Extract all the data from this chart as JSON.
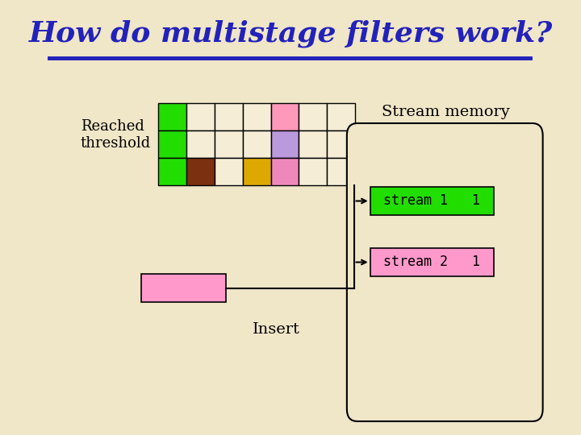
{
  "title": "How do multistage filters work?",
  "title_color": "#2222BB",
  "title_fontsize": 26,
  "bg_color": "#F0E6C8",
  "line_color": "#2222BB",
  "reached_threshold_text": "Reached\nthreshold",
  "stream_memory_text": "Stream memory",
  "insert_text": "Insert",
  "grid_colors": [
    [
      "#22DD00",
      "#F5EDD5",
      "#F5EDD5",
      "#F5EDD5",
      "#FF99BB",
      "#F5EDD5",
      "#F5EDD5"
    ],
    [
      "#22DD00",
      "#F5EDD5",
      "#F5EDD5",
      "#F5EDD5",
      "#BB99DD",
      "#F5EDD5",
      "#F5EDD5"
    ],
    [
      "#22DD00",
      "#7B3010",
      "#F5EDD5",
      "#DDA800",
      "#EE88BB",
      "#F5EDD5",
      "#F5EDD5"
    ]
  ],
  "stream1_color": "#22DD00",
  "stream1_text": "stream 1   1",
  "stream2_color": "#FF99CC",
  "stream2_text": "stream 2   1",
  "insert_box_color": "#FF99CC"
}
